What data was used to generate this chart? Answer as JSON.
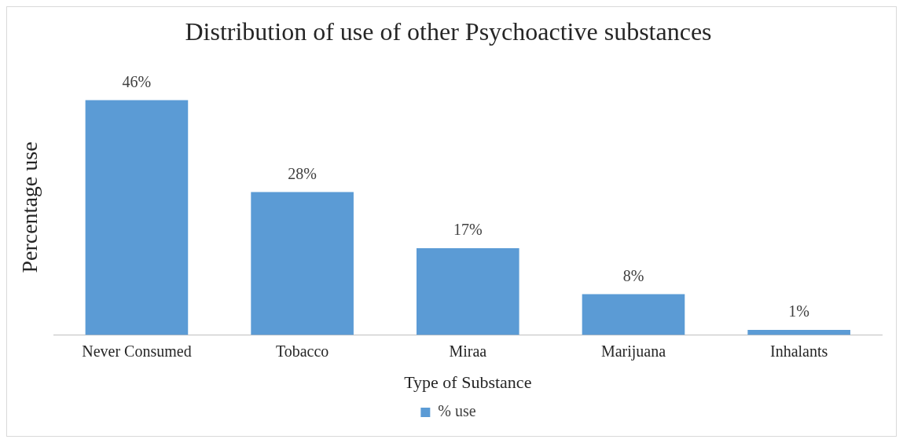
{
  "chart_data": {
    "type": "bar",
    "title": "Distribution of use of other Psychoactive substances",
    "xlabel": "Type of Substance",
    "ylabel": "Percentage use",
    "categories": [
      "Never Consumed",
      "Tobacco",
      "Miraa",
      "Marijuana",
      "Inhalants"
    ],
    "series": [
      {
        "name": "% use",
        "color": "#5b9bd5",
        "values": [
          46,
          28,
          17,
          8,
          1
        ],
        "value_labels": [
          "46%",
          "28%",
          "17%",
          "8%",
          "1%"
        ]
      }
    ],
    "legend": "bottom",
    "grid": false
  }
}
